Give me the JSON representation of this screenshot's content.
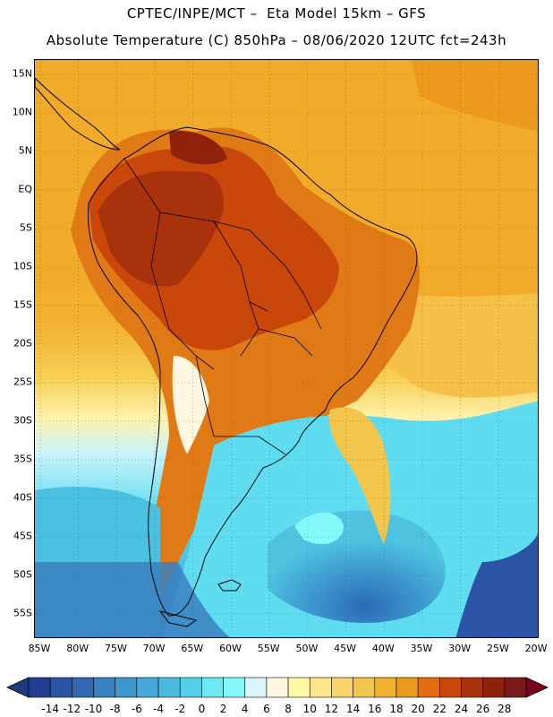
{
  "header": {
    "line1": "CPTEC/INPE/MCT –  Eta Model 15km – GFS",
    "line2": "Absolute Temperature (C) 850hPa – 08/06/2020 12UTC fct=243h"
  },
  "map": {
    "lat_labels": [
      "15N",
      "10N",
      "5N",
      "EQ",
      "5S",
      "10S",
      "15S",
      "20S",
      "25S",
      "30S",
      "35S",
      "40S",
      "45S",
      "50S",
      "55S"
    ],
    "lon_labels": [
      "85W",
      "80W",
      "75W",
      "70W",
      "65W",
      "60W",
      "55W",
      "50W",
      "45W",
      "40W",
      "35W",
      "30W",
      "25W",
      "20W"
    ],
    "lat_range": [
      15,
      -55
    ],
    "lon_range": [
      -85,
      -20
    ]
  },
  "colorbar": {
    "labels": [
      "-14",
      "-12",
      "-10",
      "-8",
      "-6",
      "-4",
      "-2",
      "0",
      "2",
      "4",
      "6",
      "8",
      "10",
      "12",
      "14",
      "16",
      "18",
      "20",
      "22",
      "24",
      "26",
      "28"
    ],
    "colors": [
      "#223e93",
      "#2b55a4",
      "#3068b2",
      "#3a80c0",
      "#3f96cc",
      "#45a8d6",
      "#4cbade",
      "#55cfe7",
      "#6ee8f1",
      "#85f8fb",
      "#d9f6fb",
      "#fff7e0",
      "#fef7a6",
      "#fde78a",
      "#f8d46a",
      "#f2c64d",
      "#f0b22e",
      "#ec9a1c",
      "#e46c10",
      "#c9470a",
      "#a8320b",
      "#8e220a",
      "#7a1a1a"
    ],
    "under_color": "#1f3b7a",
    "over_color": "#7a0020"
  }
}
